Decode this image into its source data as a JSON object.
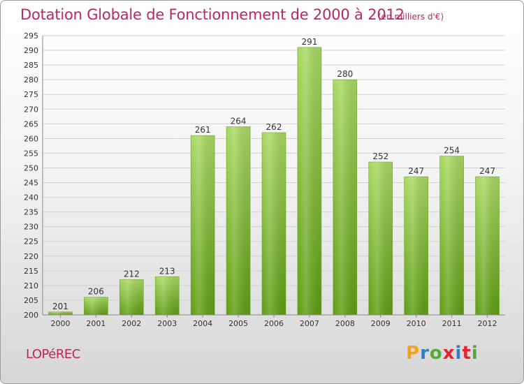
{
  "title": "Dotation Globale de Fonctionnement de 2000 à 2012",
  "subtitle": "(en milliers d'€)",
  "commune": "LOPéREC",
  "logo": {
    "letters": [
      "P",
      "r",
      "o",
      "x",
      "i",
      "t",
      "i"
    ],
    "colors": [
      "#f2a31b",
      "#2b7fc5",
      "#56a83a",
      "#e0262d",
      "#2b7fc5",
      "#e0262d",
      "#56a83a"
    ]
  },
  "colors": {
    "bar_top": "#a8d862",
    "bar_bottom": "#5e9c12",
    "axis": "#888888",
    "grid": "#d2d2d2",
    "text": "#333333",
    "accent": "#bd2660"
  },
  "chart_data": {
    "type": "bar",
    "title": "Dotation Globale de Fonctionnement de 2000 à 2012",
    "categories": [
      "2000",
      "2001",
      "2002",
      "2003",
      "2004",
      "2005",
      "2006",
      "2007",
      "2008",
      "2009",
      "2010",
      "2011",
      "2012"
    ],
    "values": [
      201,
      206,
      212,
      213,
      261,
      264,
      262,
      291,
      280,
      252,
      247,
      254,
      247
    ],
    "ylim": [
      200,
      295
    ],
    "yticks": [
      200,
      205,
      210,
      215,
      220,
      225,
      230,
      235,
      240,
      245,
      250,
      255,
      260,
      265,
      270,
      275,
      280,
      285,
      290,
      295
    ],
    "grid": true,
    "xlabel": "",
    "ylabel": ""
  }
}
